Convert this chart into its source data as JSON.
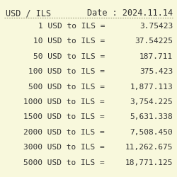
{
  "title_left": "USD / ILS",
  "title_right": "Date : 2024.11.14",
  "background_color": "#f8f8dc",
  "text_color": "#333333",
  "font_family": "monospace",
  "rows": [
    {
      "label": "1 USD to ILS =",
      "value": "3.75423"
    },
    {
      "label": "10 USD to ILS =",
      "value": "37.54225"
    },
    {
      "label": "50 USD to ILS =",
      "value": "187.711"
    },
    {
      "label": "100 USD to ILS =",
      "value": "375.423"
    },
    {
      "label": "500 USD to ILS =",
      "value": "1,877.113"
    },
    {
      "label": "1000 USD to ILS =",
      "value": "3,754.225"
    },
    {
      "label": "1500 USD to ILS =",
      "value": "5,631.338"
    },
    {
      "label": "2000 USD to ILS =",
      "value": "7,508.450"
    },
    {
      "label": "3000 USD to ILS =",
      "value": "11,262.675"
    },
    {
      "label": "5000 USD to ILS =",
      "value": "18,771.125"
    }
  ],
  "title_fontsize": 8.5,
  "row_fontsize": 8.0,
  "fig_width": 2.5,
  "fig_height": 2.5,
  "dpi": 100
}
